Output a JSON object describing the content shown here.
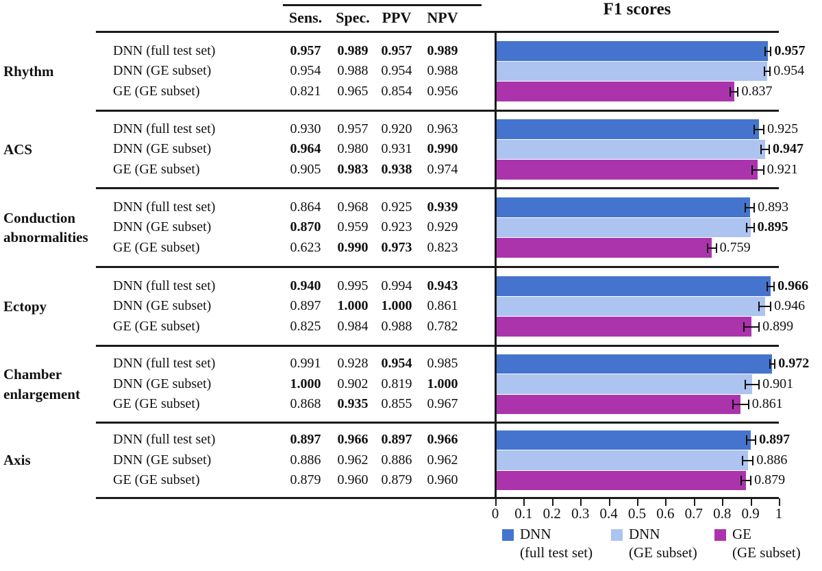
{
  "figure": {
    "chart_title": "F1 scores",
    "metric_headers": [
      "Sens.",
      "Spec.",
      "PPV",
      "NPV"
    ],
    "x_tick_labels": [
      "0",
      "0.1",
      "0.2",
      "0.3",
      "0.4",
      "0.5",
      "0.6",
      "0.7",
      "0.8",
      "0.9",
      "1"
    ],
    "legend": [
      {
        "name": "DNN",
        "detail": "(full test set)",
        "color": "#4474CD"
      },
      {
        "name": "DNN",
        "detail": "(GE subset)",
        "color": "#ADC3F0"
      },
      {
        "name": "GE",
        "detail": "(GE subset)",
        "color": "#AB34AD"
      }
    ]
  },
  "chart_data": {
    "type": "bar",
    "orientation": "horizontal",
    "title": "F1 scores",
    "xlim": [
      0,
      1
    ],
    "x_ticks": [
      0,
      0.1,
      0.2,
      0.3,
      0.4,
      0.5,
      0.6,
      0.7,
      0.8,
      0.9,
      1
    ],
    "grid": false,
    "legend_position": "bottom",
    "series_names": [
      "DNN (full test set)",
      "DNN (GE subset)",
      "GE (GE subset)"
    ],
    "series_colors": [
      "#4474CD",
      "#ADC3F0",
      "#AB34AD"
    ],
    "categories": [
      "Rhythm",
      "ACS",
      "Conduction abnormalities",
      "Ectopy",
      "Chamber enlargement",
      "Axis"
    ],
    "groups": [
      {
        "category": "Rhythm",
        "rows": [
          {
            "model": "DNN (full test set)",
            "metrics": [
              "0.957",
              "0.989",
              "0.957",
              "0.989"
            ],
            "metrics_bold": [
              true,
              true,
              true,
              true
            ],
            "f1": 0.957,
            "f1_label": "0.957",
            "f1_bold": true,
            "f1_err": 0.008
          },
          {
            "model": "DNN (GE subset)",
            "metrics": [
              "0.954",
              "0.988",
              "0.954",
              "0.988"
            ],
            "metrics_bold": [
              false,
              false,
              false,
              false
            ],
            "f1": 0.954,
            "f1_label": "0.954",
            "f1_bold": false,
            "f1_err": 0.008
          },
          {
            "model": "GE (GE subset)",
            "metrics": [
              "0.821",
              "0.965",
              "0.854",
              "0.956"
            ],
            "metrics_bold": [
              false,
              false,
              false,
              false
            ],
            "f1": 0.837,
            "f1_label": "0.837",
            "f1_bold": false,
            "f1_err": 0.012
          }
        ]
      },
      {
        "category": "ACS",
        "rows": [
          {
            "model": "DNN (full test set)",
            "metrics": [
              "0.930",
              "0.957",
              "0.920",
              "0.963"
            ],
            "metrics_bold": [
              false,
              false,
              false,
              false
            ],
            "f1": 0.925,
            "f1_label": "0.925",
            "f1_bold": false,
            "f1_err": 0.015
          },
          {
            "model": "DNN (GE subset)",
            "metrics": [
              "0.964",
              "0.980",
              "0.931",
              "0.990"
            ],
            "metrics_bold": [
              true,
              false,
              false,
              true
            ],
            "f1": 0.947,
            "f1_label": "0.947",
            "f1_bold": true,
            "f1_err": 0.012
          },
          {
            "model": "GE (GE subset)",
            "metrics": [
              "0.905",
              "0.983",
              "0.938",
              "0.974"
            ],
            "metrics_bold": [
              false,
              true,
              true,
              false
            ],
            "f1": 0.921,
            "f1_label": "0.921",
            "f1_bold": false,
            "f1_err": 0.018
          }
        ]
      },
      {
        "category": "Conduction abnormalities",
        "rows": [
          {
            "model": "DNN (full test set)",
            "metrics": [
              "0.864",
              "0.968",
              "0.925",
              "0.939"
            ],
            "metrics_bold": [
              false,
              false,
              false,
              true
            ],
            "f1": 0.893,
            "f1_label": "0.893",
            "f1_bold": false,
            "f1_err": 0.013
          },
          {
            "model": "DNN (GE subset)",
            "metrics": [
              "0.870",
              "0.959",
              "0.923",
              "0.929"
            ],
            "metrics_bold": [
              true,
              false,
              false,
              false
            ],
            "f1": 0.895,
            "f1_label": "0.895",
            "f1_bold": true,
            "f1_err": 0.01
          },
          {
            "model": "GE (GE subset)",
            "metrics": [
              "0.623",
              "0.990",
              "0.973",
              "0.823"
            ],
            "metrics_bold": [
              false,
              true,
              true,
              false
            ],
            "f1": 0.759,
            "f1_label": "0.759",
            "f1_bold": false,
            "f1_err": 0.013
          }
        ]
      },
      {
        "category": "Ectopy",
        "rows": [
          {
            "model": "DNN (full test set)",
            "metrics": [
              "0.940",
              "0.995",
              "0.994",
              "0.943"
            ],
            "metrics_bold": [
              true,
              false,
              false,
              true
            ],
            "f1": 0.966,
            "f1_label": "0.966",
            "f1_bold": true,
            "f1_err": 0.01
          },
          {
            "model": "DNN (GE subset)",
            "metrics": [
              "0.897",
              "1.000",
              "1.000",
              "0.861"
            ],
            "metrics_bold": [
              false,
              true,
              true,
              false
            ],
            "f1": 0.946,
            "f1_label": "0.946",
            "f1_bold": false,
            "f1_err": 0.018
          },
          {
            "model": "GE (GE subset)",
            "metrics": [
              "0.825",
              "0.984",
              "0.988",
              "0.782"
            ],
            "metrics_bold": [
              false,
              false,
              false,
              false
            ],
            "f1": 0.899,
            "f1_label": "0.899",
            "f1_bold": false,
            "f1_err": 0.024
          }
        ]
      },
      {
        "category": "Chamber enlargement",
        "rows": [
          {
            "model": "DNN (full test set)",
            "metrics": [
              "0.991",
              "0.928",
              "0.954",
              "0.985"
            ],
            "metrics_bold": [
              false,
              false,
              true,
              false
            ],
            "f1": 0.972,
            "f1_label": "0.972",
            "f1_bold": true,
            "f1_err": 0.007
          },
          {
            "model": "DNN (GE subset)",
            "metrics": [
              "1.000",
              "0.902",
              "0.819",
              "1.000"
            ],
            "metrics_bold": [
              true,
              false,
              false,
              true
            ],
            "f1": 0.901,
            "f1_label": "0.901",
            "f1_bold": false,
            "f1_err": 0.022
          },
          {
            "model": "GE (GE subset)",
            "metrics": [
              "0.868",
              "0.935",
              "0.855",
              "0.967"
            ],
            "metrics_bold": [
              false,
              true,
              false,
              false
            ],
            "f1": 0.861,
            "f1_label": "0.861",
            "f1_bold": false,
            "f1_err": 0.025
          }
        ]
      },
      {
        "category": "Axis",
        "rows": [
          {
            "model": "DNN (full test set)",
            "metrics": [
              "0.897",
              "0.966",
              "0.897",
              "0.966"
            ],
            "metrics_bold": [
              true,
              true,
              true,
              true
            ],
            "f1": 0.897,
            "f1_label": "0.897",
            "f1_bold": true,
            "f1_err": 0.014
          },
          {
            "model": "DNN (GE subset)",
            "metrics": [
              "0.886",
              "0.962",
              "0.886",
              "0.962"
            ],
            "metrics_bold": [
              false,
              false,
              false,
              false
            ],
            "f1": 0.886,
            "f1_label": "0.886",
            "f1_bold": false,
            "f1_err": 0.016
          },
          {
            "model": "GE (GE subset)",
            "metrics": [
              "0.879",
              "0.960",
              "0.879",
              "0.960"
            ],
            "metrics_bold": [
              false,
              false,
              false,
              false
            ],
            "f1": 0.879,
            "f1_label": "0.879",
            "f1_bold": false,
            "f1_err": 0.015
          }
        ]
      }
    ]
  }
}
